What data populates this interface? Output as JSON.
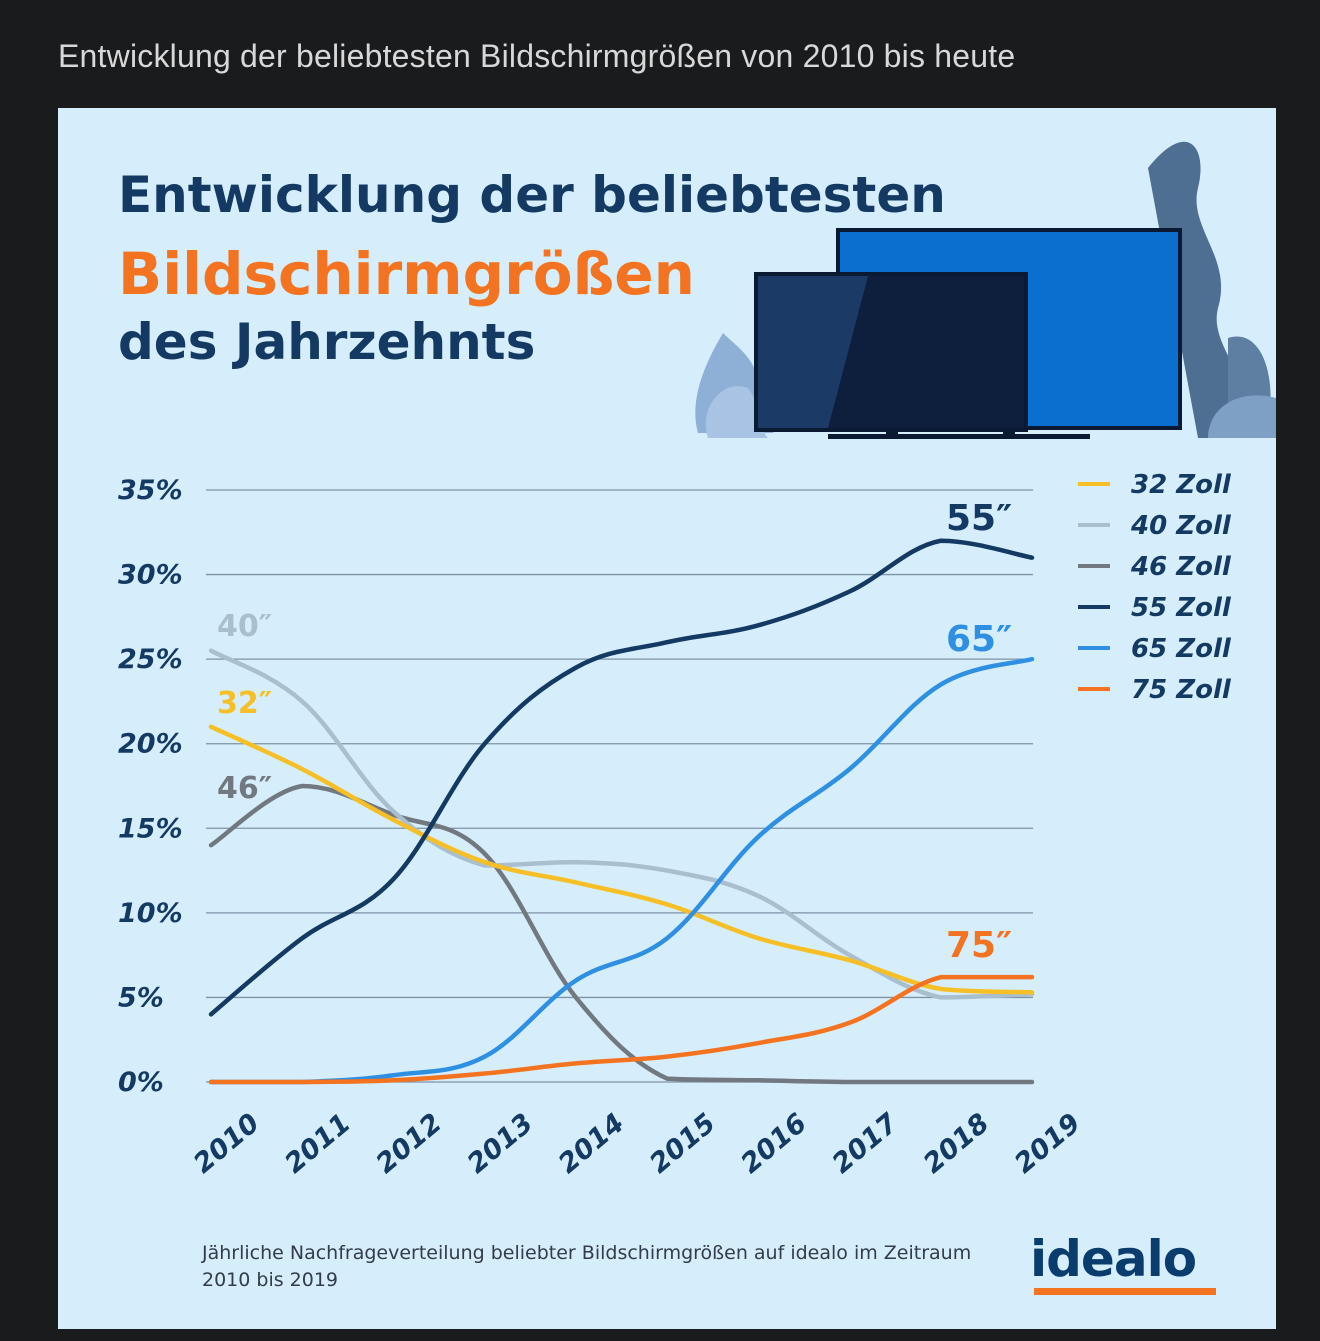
{
  "page": {
    "title": "Entwicklung der beliebtesten Bildschirmgrößen von 2010 bis heute"
  },
  "infographic": {
    "headline_line1": "Entwicklung der beliebtesten",
    "headline_line2": "Bildschirmgrößen",
    "headline_line3": "des Jahrzehnts",
    "footnote": "Jährliche Nachfrageverteilung beliebter Bildschirmgrößen auf idealo im Zeitraum 2010 bis 2019",
    "logo": "idealo",
    "colors": {
      "background": "#d6eefb",
      "navy": "#143a63",
      "orange": "#f47320"
    }
  },
  "chart_data": {
    "type": "line",
    "x": [
      "2010",
      "2011",
      "2012",
      "2013",
      "2014",
      "2015",
      "2016",
      "2017",
      "2018",
      "2019"
    ],
    "ylim": [
      0,
      35
    ],
    "yticks": [
      "0%",
      "5%",
      "10%",
      "15%",
      "20%",
      "25%",
      "30%",
      "35%"
    ],
    "grid": true,
    "legend_position": "right",
    "series": [
      {
        "name": "32 Zoll",
        "label": "32″",
        "color": "#f6bf26",
        "values": [
          21,
          18.5,
          15.5,
          13,
          11.8,
          10.5,
          8.5,
          7.2,
          5.5,
          5.3
        ]
      },
      {
        "name": "40 Zoll",
        "label": "40″",
        "color": "#a9bfd0",
        "values": [
          25.5,
          22.5,
          16,
          12.8,
          13,
          12.5,
          11,
          7.5,
          5,
          5.2
        ]
      },
      {
        "name": "46 Zoll",
        "label": "46″",
        "color": "#727880",
        "values": [
          14,
          17.5,
          15.8,
          13.5,
          5,
          0.2,
          0.1,
          0,
          0,
          0
        ]
      },
      {
        "name": "55 Zoll",
        "label": "55″",
        "color": "#143a63",
        "values": [
          4,
          8.5,
          12,
          20,
          24.5,
          26,
          27,
          29,
          32,
          31
        ]
      },
      {
        "name": "65 Zoll",
        "label": "65″",
        "color": "#2f8fe3",
        "values": [
          0,
          0,
          0.4,
          1.5,
          6,
          8.5,
          14.5,
          18.5,
          23.5,
          25
        ]
      },
      {
        "name": "75 Zoll",
        "label": "75″",
        "color": "#f47320",
        "values": [
          0,
          0,
          0.1,
          0.5,
          1.1,
          1.5,
          2.3,
          3.5,
          6.2,
          6.2
        ]
      }
    ]
  }
}
